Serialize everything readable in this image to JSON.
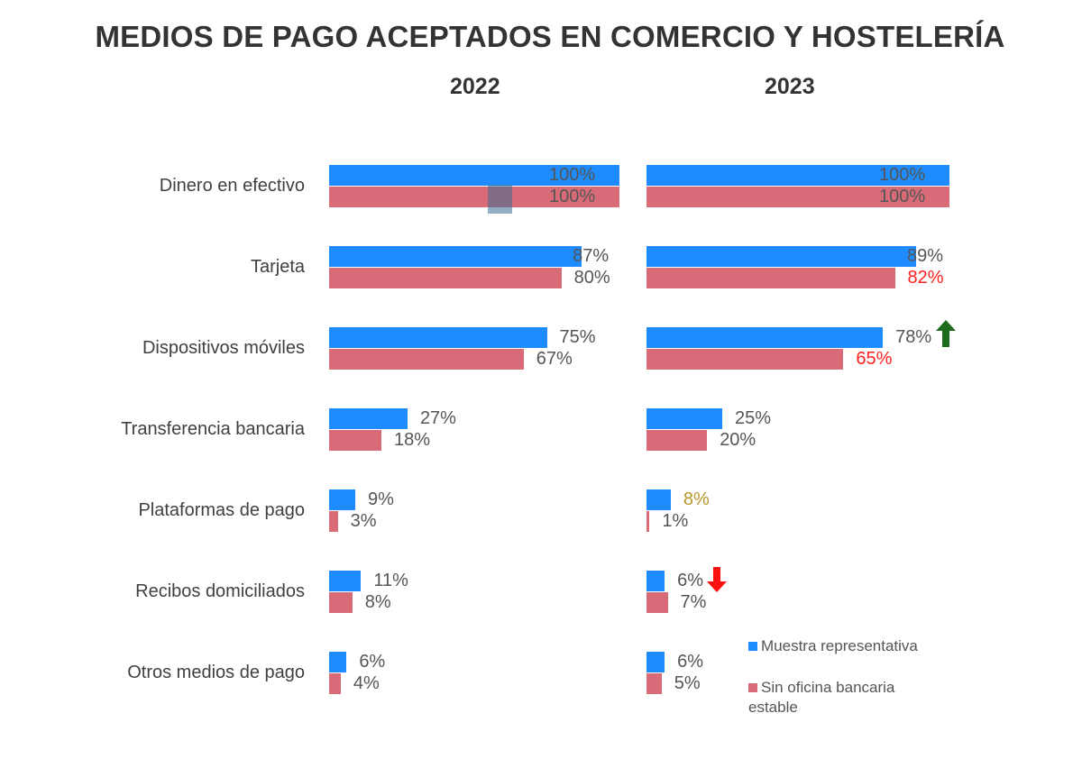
{
  "chart_data": {
    "type": "bar",
    "orientation": "horizontal",
    "title": "MEDIOS DE PAGO ACEPTADOS EN COMERCIO Y HOSTELERÍA",
    "categories": [
      "Dinero en efectivo",
      "Tarjeta",
      "Dispositivos móviles",
      "Transferencia bancaria",
      "Plataformas de pago",
      "Recibos domiciliados",
      "Otros medios de pago"
    ],
    "panels": [
      {
        "year": "2022",
        "series": [
          {
            "name": "Muestra representativa",
            "values": [
              100,
              87,
              75,
              27,
              9,
              11,
              6
            ],
            "labels": [
              "100%",
              "87%",
              "75%",
              "27%",
              "9%",
              "11%",
              "6%"
            ]
          },
          {
            "name": "Sin oficina bancaria estable",
            "values": [
              100,
              80,
              67,
              18,
              3,
              8,
              4
            ],
            "labels": [
              "100%",
              "80%",
              "67%",
              "18%",
              "3%",
              "8%",
              "4%"
            ]
          }
        ]
      },
      {
        "year": "2023",
        "series": [
          {
            "name": "Muestra representativa",
            "values": [
              100,
              89,
              78,
              25,
              8,
              6,
              6
            ],
            "labels": [
              "100%",
              "89%",
              "78%",
              "25%",
              "8%",
              "6%",
              "6%"
            ]
          },
          {
            "name": "Sin oficina bancaria estable",
            "values": [
              100,
              82,
              65,
              20,
              1,
              7,
              5
            ],
            "labels": [
              "100%",
              "82%",
              "65%",
              "20%",
              "1%",
              "7%",
              "5%"
            ]
          }
        ]
      }
    ],
    "label_highlights": [
      {
        "panel": 1,
        "series": 1,
        "index": 1,
        "color": "#ff2020"
      },
      {
        "panel": 1,
        "series": 1,
        "index": 2,
        "color": "#ff2020"
      },
      {
        "panel": 1,
        "series": 0,
        "index": 4,
        "color": "#b8962e"
      }
    ],
    "annotations": [
      {
        "panel": 1,
        "index": 2,
        "type": "arrow-up",
        "color": "#1e6b1e"
      },
      {
        "panel": 1,
        "index": 5,
        "type": "arrow-down",
        "color": "#ff1010"
      }
    ],
    "legend": {
      "position": "bottom-right",
      "entries": [
        "Muestra representativa",
        "Sin oficina bancaria estable"
      ]
    },
    "xlim": [
      0,
      100
    ],
    "grid": false
  },
  "colors": {
    "blue": "#1e8cff",
    "pink": "#d96b78"
  }
}
